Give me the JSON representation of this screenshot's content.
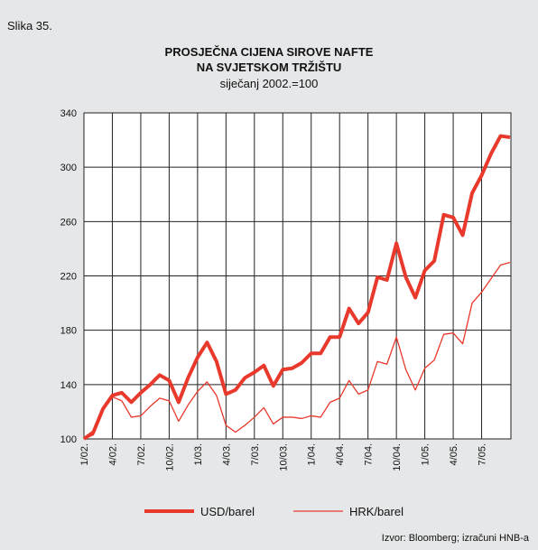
{
  "label": "Slika 35.",
  "source": "Izvor: Bloomberg; izračuni HNB-a",
  "chart_data": {
    "type": "line",
    "title": [
      "PROSJEČNA CIJENA SIROVE NAFTE",
      "NA SVJETSKOM TRŽIŠTU"
    ],
    "subtitle": "siječanj 2002.=100",
    "categories": [
      "1/02.",
      null,
      null,
      "4/02.",
      null,
      null,
      "7/02.",
      null,
      null,
      "10/02.",
      null,
      null,
      "1/03.",
      null,
      null,
      "4/03.",
      null,
      null,
      "7/03.",
      null,
      null,
      "10/03.",
      null,
      null,
      "1/04.",
      null,
      null,
      "4/04.",
      null,
      null,
      "7/04.",
      null,
      null,
      "10/04.",
      null,
      null,
      "1/05.",
      null,
      null,
      "4/05.",
      null,
      null,
      "7/05.",
      null,
      null,
      null
    ],
    "series": [
      {
        "name": "USD/barel",
        "color": "#e8392c",
        "width": 4,
        "values": [
          100,
          105,
          122,
          132,
          134,
          127,
          134,
          140,
          147,
          143,
          127,
          145,
          160,
          171,
          157,
          133,
          136,
          145,
          149,
          154,
          139,
          151,
          152,
          156,
          163,
          163,
          175,
          175,
          196,
          185,
          193,
          219,
          217,
          244,
          219,
          204,
          224,
          231,
          265,
          263,
          250,
          281,
          294,
          310,
          323,
          322
        ]
      },
      {
        "name": "HRK/barel",
        "color": "#e8392c",
        "width": 1.3,
        "values": [
          100,
          103,
          122,
          131,
          128,
          116,
          117,
          124,
          130,
          128,
          113,
          125,
          135,
          142,
          132,
          110,
          105,
          110,
          116,
          123,
          111,
          116,
          116,
          115,
          117,
          116,
          127,
          130,
          143,
          133,
          136,
          157,
          155,
          175,
          151,
          136,
          152,
          158,
          177,
          178,
          170,
          200,
          208,
          218,
          228,
          230
        ]
      }
    ],
    "ylim": [
      100,
      340
    ],
    "yticks": [
      100,
      140,
      180,
      220,
      260,
      300,
      340
    ],
    "grid": true
  }
}
